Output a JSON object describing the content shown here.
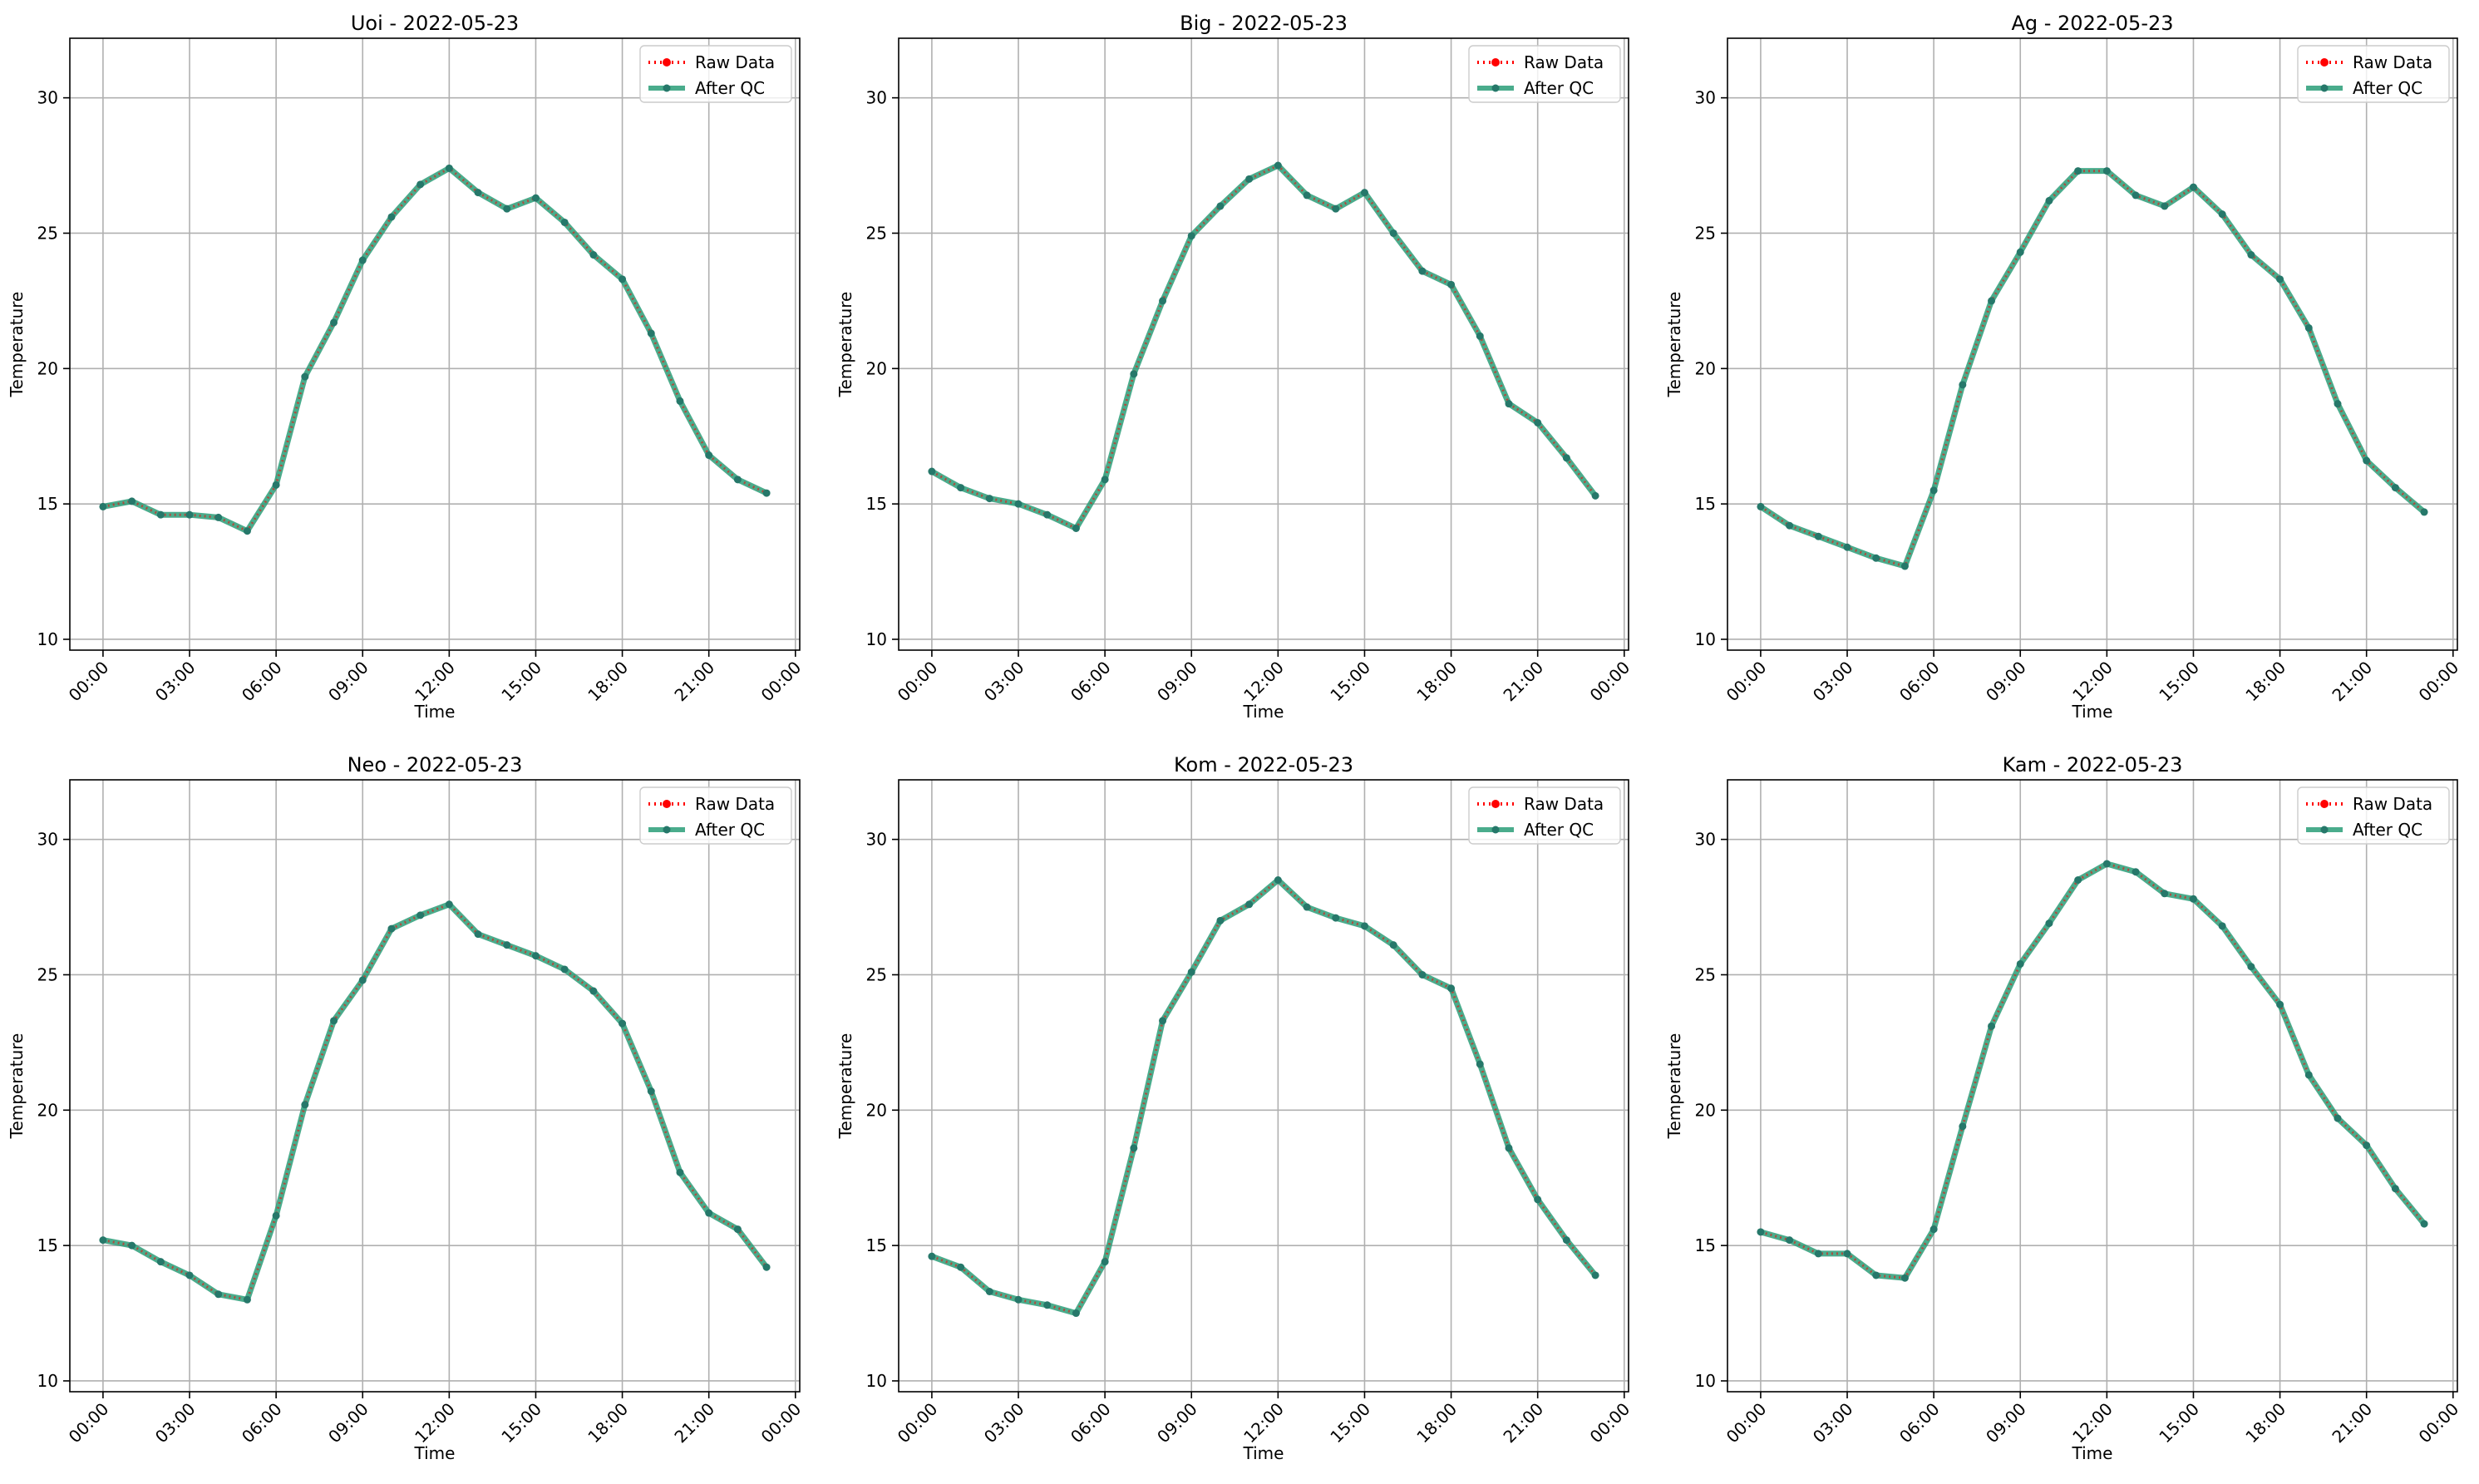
{
  "figure": {
    "background": "#ffffff",
    "raw_color": "#ff0000",
    "qc_color": "#2a9d78",
    "qc_marker_color": "#26786a",
    "grid_color": "#b0b0b0"
  },
  "chart_data": [
    {
      "type": "line",
      "title": "Uoi - 2022-05-23",
      "xlabel": "Time",
      "ylabel": "Temperature",
      "x_ticks": [
        "00:00",
        "03:00",
        "06:00",
        "09:00",
        "12:00",
        "15:00",
        "18:00",
        "21:00",
        "00:00"
      ],
      "xlim_hours": [
        -1.15,
        24.15
      ],
      "ylim": [
        9.6,
        32.2
      ],
      "y_ticks": [
        10,
        15,
        20,
        25,
        30
      ],
      "grid": true,
      "legend": "top-right",
      "x_hours": [
        0,
        1,
        2,
        3,
        4,
        5,
        6,
        7,
        8,
        9,
        10,
        11,
        12,
        13,
        14,
        15,
        16,
        17,
        18,
        19,
        20,
        21,
        22,
        23
      ],
      "series": [
        {
          "name": "Raw Data",
          "style": "dotted",
          "values": [
            14.9,
            15.1,
            14.6,
            14.6,
            14.5,
            14.0,
            15.7,
            19.7,
            21.7,
            24.0,
            25.6,
            26.8,
            27.4,
            26.5,
            25.9,
            26.3,
            25.4,
            24.2,
            23.3,
            21.3,
            18.8,
            16.8,
            15.9,
            15.4
          ]
        },
        {
          "name": "After QC",
          "style": "solid",
          "values": [
            14.9,
            15.1,
            14.6,
            14.6,
            14.5,
            14.0,
            15.7,
            19.7,
            21.7,
            24.0,
            25.6,
            26.8,
            27.4,
            26.5,
            25.9,
            26.3,
            25.4,
            24.2,
            23.3,
            21.3,
            18.8,
            16.8,
            15.9,
            15.4
          ]
        }
      ]
    },
    {
      "type": "line",
      "title": "Big - 2022-05-23",
      "xlabel": "Time",
      "ylabel": "Temperature",
      "x_ticks": [
        "00:00",
        "03:00",
        "06:00",
        "09:00",
        "12:00",
        "15:00",
        "18:00",
        "21:00",
        "00:00"
      ],
      "xlim_hours": [
        -1.15,
        24.15
      ],
      "ylim": [
        9.6,
        32.2
      ],
      "y_ticks": [
        10,
        15,
        20,
        25,
        30
      ],
      "grid": true,
      "legend": "top-right",
      "x_hours": [
        0,
        1,
        2,
        3,
        4,
        5,
        6,
        7,
        8,
        9,
        10,
        11,
        12,
        13,
        14,
        15,
        16,
        17,
        18,
        19,
        20,
        21,
        22,
        23
      ],
      "series": [
        {
          "name": "Raw Data",
          "style": "dotted",
          "values": [
            16.2,
            15.6,
            15.2,
            15.0,
            14.6,
            14.1,
            15.9,
            19.8,
            22.5,
            24.9,
            26.0,
            27.0,
            27.5,
            26.4,
            25.9,
            26.5,
            25.0,
            23.6,
            23.1,
            21.2,
            18.7,
            18.0,
            16.7,
            15.3
          ]
        },
        {
          "name": "After QC",
          "style": "solid",
          "values": [
            16.2,
            15.6,
            15.2,
            15.0,
            14.6,
            14.1,
            15.9,
            19.8,
            22.5,
            24.9,
            26.0,
            27.0,
            27.5,
            26.4,
            25.9,
            26.5,
            25.0,
            23.6,
            23.1,
            21.2,
            18.7,
            18.0,
            16.7,
            15.3
          ]
        }
      ]
    },
    {
      "type": "line",
      "title": "Ag - 2022-05-23",
      "xlabel": "Time",
      "ylabel": "Temperature",
      "x_ticks": [
        "00:00",
        "03:00",
        "06:00",
        "09:00",
        "12:00",
        "15:00",
        "18:00",
        "21:00",
        "00:00"
      ],
      "xlim_hours": [
        -1.15,
        24.15
      ],
      "ylim": [
        9.6,
        32.2
      ],
      "y_ticks": [
        10,
        15,
        20,
        25,
        30
      ],
      "grid": true,
      "legend": "top-right",
      "x_hours": [
        0,
        1,
        2,
        3,
        4,
        5,
        6,
        7,
        8,
        9,
        10,
        11,
        12,
        13,
        14,
        15,
        16,
        17,
        18,
        19,
        20,
        21,
        22,
        23
      ],
      "series": [
        {
          "name": "Raw Data",
          "style": "dotted",
          "values": [
            14.9,
            14.2,
            13.8,
            13.4,
            13.0,
            12.7,
            15.5,
            19.4,
            22.5,
            24.3,
            26.2,
            27.3,
            27.3,
            26.4,
            26.0,
            26.7,
            25.7,
            24.2,
            23.3,
            21.5,
            18.7,
            16.6,
            15.6,
            14.7
          ]
        },
        {
          "name": "After QC",
          "style": "solid",
          "values": [
            14.9,
            14.2,
            13.8,
            13.4,
            13.0,
            12.7,
            15.5,
            19.4,
            22.5,
            24.3,
            26.2,
            27.3,
            27.3,
            26.4,
            26.0,
            26.7,
            25.7,
            24.2,
            23.3,
            21.5,
            18.7,
            16.6,
            15.6,
            14.7
          ]
        }
      ]
    },
    {
      "type": "line",
      "title": "Neo - 2022-05-23",
      "xlabel": "Time",
      "ylabel": "Temperature",
      "x_ticks": [
        "00:00",
        "03:00",
        "06:00",
        "09:00",
        "12:00",
        "15:00",
        "18:00",
        "21:00",
        "00:00"
      ],
      "xlim_hours": [
        -1.15,
        24.15
      ],
      "ylim": [
        9.6,
        32.2
      ],
      "y_ticks": [
        10,
        15,
        20,
        25,
        30
      ],
      "grid": true,
      "legend": "top-right",
      "x_hours": [
        0,
        1,
        2,
        3,
        4,
        5,
        6,
        7,
        8,
        9,
        10,
        11,
        12,
        13,
        14,
        15,
        16,
        17,
        18,
        19,
        20,
        21,
        22,
        23
      ],
      "series": [
        {
          "name": "Raw Data",
          "style": "dotted",
          "values": [
            15.2,
            15.0,
            14.4,
            13.9,
            13.2,
            13.0,
            16.1,
            20.2,
            23.3,
            24.8,
            26.7,
            27.2,
            27.6,
            26.5,
            26.1,
            25.7,
            25.2,
            24.4,
            23.2,
            20.7,
            17.7,
            16.2,
            15.6,
            14.2
          ]
        },
        {
          "name": "After QC",
          "style": "solid",
          "values": [
            15.2,
            15.0,
            14.4,
            13.9,
            13.2,
            13.0,
            16.1,
            20.2,
            23.3,
            24.8,
            26.7,
            27.2,
            27.6,
            26.5,
            26.1,
            25.7,
            25.2,
            24.4,
            23.2,
            20.7,
            17.7,
            16.2,
            15.6,
            14.2
          ]
        }
      ]
    },
    {
      "type": "line",
      "title": "Kom - 2022-05-23",
      "xlabel": "Time",
      "ylabel": "Temperature",
      "x_ticks": [
        "00:00",
        "03:00",
        "06:00",
        "09:00",
        "12:00",
        "15:00",
        "18:00",
        "21:00",
        "00:00"
      ],
      "xlim_hours": [
        -1.15,
        24.15
      ],
      "ylim": [
        9.6,
        32.2
      ],
      "y_ticks": [
        10,
        15,
        20,
        25,
        30
      ],
      "grid": true,
      "legend": "top-right",
      "x_hours": [
        0,
        1,
        2,
        3,
        4,
        5,
        6,
        7,
        8,
        9,
        10,
        11,
        12,
        13,
        14,
        15,
        16,
        17,
        18,
        19,
        20,
        21,
        22,
        23
      ],
      "series": [
        {
          "name": "Raw Data",
          "style": "dotted",
          "values": [
            14.6,
            14.2,
            13.3,
            13.0,
            12.8,
            12.5,
            14.4,
            18.6,
            23.3,
            25.1,
            27.0,
            27.6,
            28.5,
            27.5,
            27.1,
            26.8,
            26.1,
            25.0,
            24.5,
            21.7,
            18.6,
            16.7,
            15.2,
            13.9
          ]
        },
        {
          "name": "After QC",
          "style": "solid",
          "values": [
            14.6,
            14.2,
            13.3,
            13.0,
            12.8,
            12.5,
            14.4,
            18.6,
            23.3,
            25.1,
            27.0,
            27.6,
            28.5,
            27.5,
            27.1,
            26.8,
            26.1,
            25.0,
            24.5,
            21.7,
            18.6,
            16.7,
            15.2,
            13.9
          ]
        }
      ]
    },
    {
      "type": "line",
      "title": "Kam - 2022-05-23",
      "xlabel": "Time",
      "ylabel": "Temperature",
      "x_ticks": [
        "00:00",
        "03:00",
        "06:00",
        "09:00",
        "12:00",
        "15:00",
        "18:00",
        "21:00",
        "00:00"
      ],
      "xlim_hours": [
        -1.15,
        24.15
      ],
      "ylim": [
        9.6,
        32.2
      ],
      "y_ticks": [
        10,
        15,
        20,
        25,
        30
      ],
      "grid": true,
      "legend": "top-right",
      "x_hours": [
        0,
        1,
        2,
        3,
        4,
        5,
        6,
        7,
        8,
        9,
        10,
        11,
        12,
        13,
        14,
        15,
        16,
        17,
        18,
        19,
        20,
        21,
        22,
        23
      ],
      "series": [
        {
          "name": "Raw Data",
          "style": "dotted",
          "values": [
            15.5,
            15.2,
            14.7,
            14.7,
            13.9,
            13.8,
            15.6,
            19.4,
            23.1,
            25.4,
            26.9,
            28.5,
            29.1,
            28.8,
            28.0,
            27.8,
            26.8,
            25.3,
            23.9,
            21.3,
            19.7,
            18.7,
            17.1,
            15.8
          ]
        },
        {
          "name": "After QC",
          "style": "solid",
          "values": [
            15.5,
            15.2,
            14.7,
            14.7,
            13.9,
            13.8,
            15.6,
            19.4,
            23.1,
            25.4,
            26.9,
            28.5,
            29.1,
            28.8,
            28.0,
            27.8,
            26.8,
            25.3,
            23.9,
            21.3,
            19.7,
            18.7,
            17.1,
            15.8
          ]
        }
      ]
    }
  ]
}
